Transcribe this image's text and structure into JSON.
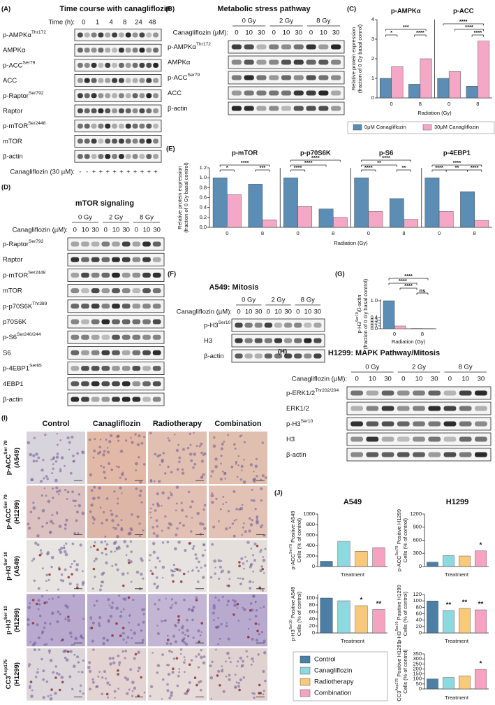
{
  "blots": {
    "A": {
      "letter": "(A)",
      "title": "Time course with canagliflozin",
      "header_label": "Time (h):",
      "header": [
        "0",
        "1",
        "4",
        "8",
        "24",
        "48"
      ],
      "rows": [
        [
          "p-AMPKα",
          "Thr172"
        ],
        [
          "AMPKα"
        ],
        [
          "p-ACC",
          "Ser79"
        ],
        [
          "ACC"
        ],
        [
          "p-Raptor",
          "Ser792"
        ],
        [
          "Raptor"
        ],
        [
          "p-mTOR",
          "Ser2448"
        ],
        [
          "mTOR"
        ],
        [
          "β-actin"
        ]
      ],
      "lane_label": "Canagliflozin (30 µM):",
      "lanes": [
        "-",
        "-",
        "+",
        "+",
        "+",
        "+",
        "+",
        "+",
        "+",
        "+",
        "+",
        "+"
      ]
    },
    "B": {
      "letter": "(B)",
      "title": "Metabolic stress pathway",
      "groups": [
        "0 Gy",
        "2 Gy",
        "8 Gy"
      ],
      "lane_label": "Canagliflozin (µM):",
      "lanes": [
        "0",
        "10",
        "30",
        "0",
        "10",
        "30",
        "0",
        "10",
        "30"
      ],
      "rows": [
        [
          "p-AMPKα",
          "Thr172"
        ],
        [
          "AMPKα"
        ],
        [
          "p-ACC",
          "Ser79"
        ],
        [
          "ACC"
        ],
        [
          "β-actin"
        ]
      ]
    },
    "D": {
      "letter": "(D)",
      "title": "mTOR signaling",
      "groups": [
        "0 Gy",
        "2 Gy",
        "8 Gy"
      ],
      "lane_label": "Canagliflozin (µM):",
      "lanes": [
        "0",
        "10",
        "30",
        "0",
        "10",
        "30",
        "0",
        "10",
        "30"
      ],
      "rows": [
        [
          "p-Raptor",
          "Ser792"
        ],
        [
          "Raptor"
        ],
        [
          "p-mTOR",
          "Ser2448"
        ],
        [
          "mTOR"
        ],
        [
          "p-p70S6K",
          "Thr389"
        ],
        [
          "p70S6K"
        ],
        [
          "p-S6",
          "Ser240/244"
        ],
        [
          "S6"
        ],
        [
          "p-4EBP1",
          "Ser65"
        ],
        [
          "4EBP1"
        ],
        [
          "β-actin"
        ]
      ]
    },
    "F": {
      "letter": "(F)",
      "title": "A549: Mitosis",
      "groups": [
        "0 Gy",
        "2 Gy",
        "8 Gy"
      ],
      "lane_label": "Canagliflozin (µM):",
      "lanes": [
        "0",
        "10",
        "30",
        "0",
        "10",
        "30",
        "0",
        "10",
        "30"
      ],
      "rows": [
        [
          "p-H3",
          "Ser10"
        ],
        [
          "H3"
        ],
        [
          "β-actin"
        ]
      ]
    },
    "H": {
      "letter": "(H)",
      "title": "H1299: MAPK Pathway/Mitosis",
      "groups": [
        "0 Gy",
        "2 Gy",
        "8 Gy"
      ],
      "lane_label": "Canagliflozin (µM):",
      "lanes": [
        "0",
        "10",
        "30",
        "0",
        "10",
        "30",
        "0",
        "10",
        "30"
      ],
      "rows": [
        [
          "p-ERK1/2",
          "Thr202/204"
        ],
        [
          "ERK1/2"
        ],
        [
          "p-H3",
          "Ser10"
        ],
        [
          "H3"
        ],
        [
          "β-actin"
        ]
      ]
    }
  },
  "histology": {
    "letter": "(I)",
    "columns": [
      "Control",
      "Canagliflozin",
      "Radiotherapy",
      "Combination"
    ],
    "rows": [
      [
        [
          "p-ACC",
          "Ser 79"
        ],
        [
          "(A549)"
        ]
      ],
      [
        [
          "p-ACC",
          "Ser 79"
        ],
        [
          "(H1299)"
        ]
      ],
      [
        [
          "p-H3",
          "Ser 10"
        ],
        [
          "(A549)"
        ]
      ],
      [
        [
          "p-H3",
          "Ser 10"
        ],
        [
          "(H1299)"
        ]
      ],
      [
        [
          "CC3",
          "Asp175"
        ],
        [
          "(H1299)"
        ]
      ]
    ]
  },
  "J": {
    "letter": "(J)",
    "cell_lines": [
      "A549",
      "H1299"
    ],
    "legend": [
      {
        "name": "Control",
        "color": "#4c7fa6"
      },
      {
        "name": "Canagliflozin",
        "color": "#8fd8e0"
      },
      {
        "name": "Radiotherapy",
        "color": "#f8c97a"
      },
      {
        "name": "Combination",
        "color": "#f6a3c2"
      }
    ]
  },
  "chart_data": [
    {
      "type": "bar",
      "panel": "(C)",
      "facets": [
        "p-AMPKα",
        "p-ACC"
      ],
      "categories": [
        "0",
        "8"
      ],
      "series": [
        {
          "name": "0μM Canagliflozin",
          "color": "#5b8db5",
          "values": [
            [
              1.0,
              0.7
            ],
            [
              1.0,
              0.6
            ]
          ]
        },
        {
          "name": "30μM Canagliflozin",
          "color": "#f5a8c5",
          "values": [
            [
              1.6,
              2.0
            ],
            [
              1.35,
              2.9
            ]
          ]
        }
      ],
      "ylim": [
        0,
        4
      ],
      "yticks": [
        0,
        1,
        2,
        3,
        4
      ],
      "ylabel": [
        [
          "Relative protein expression"
        ],
        [
          "(fraction of 0 Gy basal conrol)"
        ]
      ],
      "xlabel": "Radiation (Gy)",
      "significance": [
        [
          "*",
          "***",
          "****"
        ],
        [
          "****",
          "****",
          "****"
        ]
      ]
    },
    {
      "type": "bar",
      "panel": "(E)",
      "facets": [
        "p-mTOR",
        "p-p70S6K",
        "p-S6",
        "p-4EBP1"
      ],
      "categories": [
        "0",
        "8"
      ],
      "series": [
        {
          "color": "#5b8db5",
          "values": [
            [
              1.0,
              0.87
            ],
            [
              1.0,
              0.37
            ],
            [
              1.0,
              0.58
            ],
            [
              1.0,
              0.72
            ]
          ]
        },
        {
          "color": "#f5a8c5",
          "values": [
            [
              0.66,
              0.15
            ],
            [
              0.42,
              0.2
            ],
            [
              0.32,
              0.16
            ],
            [
              0.32,
              0.14
            ]
          ]
        }
      ],
      "ylim": [
        0,
        1.2
      ],
      "yticks": [
        {
          "value": 0,
          "label": "0.0"
        },
        0.2,
        0.4,
        0.6,
        0.8,
        {
          "value": 1,
          "label": "1.0"
        },
        1.2
      ],
      "ylabel": [
        [
          "Relative protein expression"
        ],
        [
          "(fraction of 0 Gy basal control)"
        ]
      ],
      "xlabel": "Radiation (Gy)",
      "significance": [
        [
          "****",
          "*",
          "***"
        ],
        [
          "****",
          "****",
          "****"
        ],
        [
          "****",
          "**",
          "****",
          "**"
        ],
        [
          "****",
          "****",
          "**",
          "****"
        ]
      ]
    },
    {
      "type": "bar",
      "panel": "(G)",
      "categories": [
        "0",
        "8"
      ],
      "series": [
        {
          "color": "#5b8db5",
          "values": [
            1.0,
            0.01
          ]
        },
        {
          "color": "#f5a8c5",
          "values": [
            0.1,
            0.005
          ]
        }
      ],
      "ylim": [
        0,
        1.05
      ],
      "yticks": [
        {
          "value": 0,
          "label": "0.0"
        },
        0.1,
        0.2,
        0.3,
        0.4,
        {
          "value": 1,
          "label": "1.0"
        }
      ],
      "ylabel": [
        [
          "p-H3",
          "Ser10",
          "/β-actin"
        ],
        [
          "(fraction of 0 Gy basal control)"
        ]
      ],
      "xlabel": "Radiation (Gy)",
      "significance": [
        "****",
        "****",
        "****",
        "ns"
      ]
    },
    {
      "type": "jbar",
      "values": [
        100,
        480,
        290,
        360
      ],
      "ylim": [
        0,
        1000
      ],
      "yticks": [
        0,
        200,
        400,
        600,
        800,
        1000
      ],
      "ylabel": [
        [
          "p-ACC",
          "Ser79",
          " Positive A549"
        ],
        [
          "Cells (% of control)"
        ]
      ],
      "xlabel": "Treatment"
    },
    {
      "type": "jbar",
      "values": [
        100,
        250,
        240,
        360
      ],
      "ylim": [
        0,
        1200
      ],
      "yticks": [
        0,
        300,
        600,
        900,
        1200
      ],
      "ylabel": [
        [
          "p-ACC",
          "Ser79",
          " Positive H1299"
        ],
        [
          "Cells (% of control)"
        ]
      ],
      "xlabel": "Treatment",
      "significance": [
        "*"
      ]
    },
    {
      "type": "jbar",
      "values": [
        100,
        92,
        78,
        67
      ],
      "ylim": [
        0,
        110
      ],
      "yticks": [
        0,
        20,
        40,
        60,
        80,
        100
      ],
      "ylabel": [
        [
          "p-H3",
          "Ser10",
          " Positive A549"
        ],
        [
          "Cells (% of control)"
        ]
      ],
      "xlabel": "Treatment",
      "significance": [
        "*",
        "**"
      ]
    },
    {
      "type": "jbar",
      "values": [
        100,
        70,
        77,
        72
      ],
      "ylim": [
        0,
        120
      ],
      "yticks": [
        0,
        20,
        40,
        60,
        80,
        100,
        120
      ],
      "ylabel": [
        [
          "p-H3",
          "Ser10",
          " Positive H1299"
        ],
        [
          "Cells (% of control)"
        ]
      ],
      "xlabel": "Treatment",
      "significance": [
        "**",
        "**",
        "**"
      ]
    },
    {
      "type": "jbar",
      "values": [
        100,
        115,
        130,
        195
      ],
      "ylim": [
        0,
        350
      ],
      "yticks": [
        0,
        50,
        100,
        150,
        200,
        250,
        300,
        350
      ],
      "ylabel": [
        [
          "CC3",
          "Asp175",
          " Positive H1299"
        ],
        [
          "Cells (% of control)"
        ]
      ],
      "xlabel": "Treatment",
      "significance": [
        "*"
      ]
    }
  ]
}
